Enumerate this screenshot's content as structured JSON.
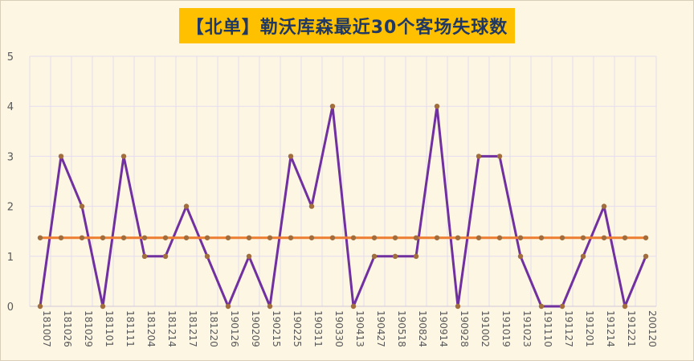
{
  "title": "【北单】勒沃库森最近30个客场失球数",
  "colors": {
    "background": "#fdf6e3",
    "title_bg": "#ffc000",
    "title_text": "#1f3864",
    "series_line": "#7030a0",
    "average_line": "#ed7d31",
    "marker": "#a16d3c",
    "grid": "#e4dcef"
  },
  "chart_data": {
    "type": "line",
    "title": "【北单】勒沃库森最近30个客场失球数",
    "categories": [
      "181007",
      "181026",
      "181029",
      "181101",
      "181111",
      "181204",
      "181214",
      "181217",
      "181220",
      "190126",
      "190209",
      "190215",
      "190225",
      "190311",
      "190330",
      "190413",
      "190427",
      "190518",
      "190824",
      "190914",
      "190928",
      "191002",
      "191019",
      "191023",
      "191110",
      "191127",
      "191201",
      "191214",
      "191221",
      "200120"
    ],
    "series": [
      {
        "values": [
          0,
          3,
          2,
          0,
          3,
          1,
          1,
          2,
          1,
          0,
          1,
          0,
          3,
          2,
          4,
          0,
          1,
          1,
          1,
          4,
          0,
          3,
          3,
          1,
          0,
          0,
          1,
          2,
          0,
          1
        ]
      },
      {
        "values": [
          1.37,
          1.37,
          1.37,
          1.37,
          1.37,
          1.37,
          1.37,
          1.37,
          1.37,
          1.37,
          1.37,
          1.37,
          1.37,
          1.37,
          1.37,
          1.37,
          1.37,
          1.37,
          1.37,
          1.37,
          1.37,
          1.37,
          1.37,
          1.37,
          1.37,
          1.37,
          1.37,
          1.37,
          1.37,
          1.37
        ]
      }
    ],
    "yticks": [
      "0",
      "1",
      "2",
      "3",
      "4",
      "5"
    ],
    "ylim": [
      0,
      5
    ],
    "grid": true,
    "legend": "none"
  }
}
